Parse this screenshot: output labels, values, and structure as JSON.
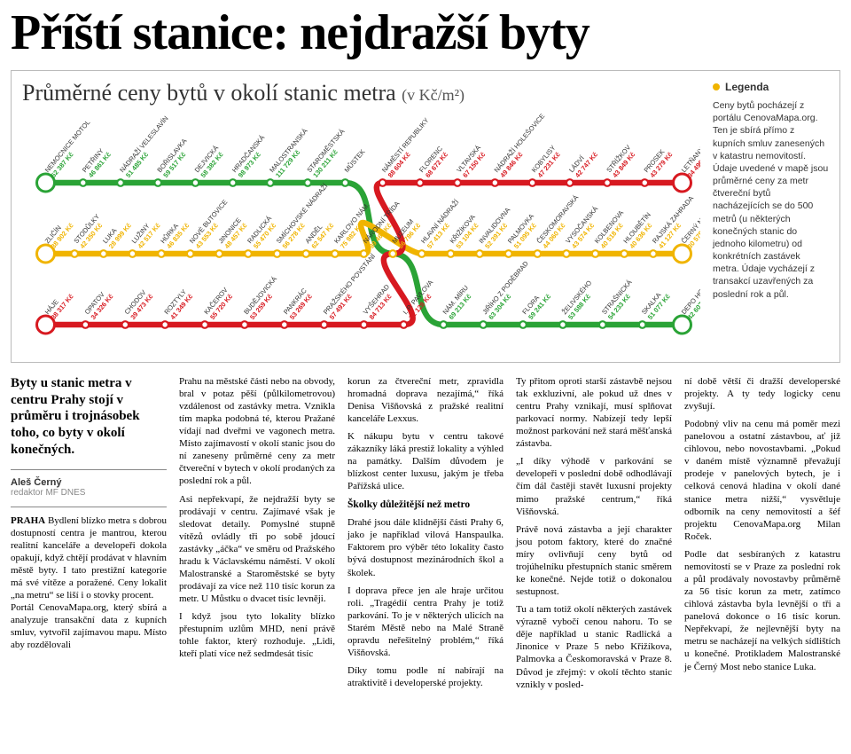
{
  "headline": "Příští stanice: nejdražší byty",
  "map": {
    "title": "Průměrné ceny bytů v okolí stanic metra",
    "unit": "(v Kč/m²)",
    "colors": {
      "A": "#2aa336",
      "B": "#f0b400",
      "C": "#d71920"
    },
    "legend_title": "Legenda",
    "legend_text": "Ceny bytů pocházejí z portálu CenovaMapa.org. Ten je sbírá přímo z kupních smluv zanesených v katastru nemovitostí. Údaje uvedené v mapě jsou průměrné ceny za metr čtvereční bytů nacházejících se do 500 metrů (u některých konečných stanic do jednoho kilometru) od konkrétních zastávek metra. Údaje vycházejí z transakcí uzavřených za poslední rok a půl.",
    "lines": {
      "A_top": [
        {
          "name": "NEMOCNICE MOTOL",
          "price": "52 387 Kč"
        },
        {
          "name": "PETŘINY",
          "price": "46 861 Kč"
        },
        {
          "name": "NÁDRAŽÍ VELESLAVÍN",
          "price": "51 485 Kč"
        },
        {
          "name": "BOŘISLAVKA",
          "price": "59 517 Kč"
        },
        {
          "name": "DEJVICKÁ",
          "price": "58 382 Kč"
        },
        {
          "name": "HRADČANSKÁ",
          "price": "98 973 Kč"
        },
        {
          "name": "MALOSTRANSKÁ",
          "price": "111 729 Kč"
        },
        {
          "name": "STAROMĚSTSKÁ",
          "price": "130 211 Kč"
        },
        {
          "name": "MŮSTEK",
          "price": ""
        },
        {
          "name": "NÁMĚSTÍ REPUBLIKY",
          "price": "88 604 Kč"
        },
        {
          "name": "FLORENC",
          "price": "68 672 Kč"
        },
        {
          "name": "VLTAVSKÁ",
          "price": "67 150 Kč"
        },
        {
          "name": "NÁDRAŽÍ HOLEŠOVICE",
          "price": "49 846 Kč"
        },
        {
          "name": "KOBYLISY",
          "price": "47 231 Kč"
        },
        {
          "name": "LÁDVÍ",
          "price": "42 747 Kč"
        },
        {
          "name": "STŘÍŽKOV",
          "price": "43 849 Kč"
        },
        {
          "name": "PROSEK",
          "price": "43 279 Kč"
        },
        {
          "name": "LETŇANY",
          "price": "34 496 Kč"
        }
      ],
      "B_mid": [
        {
          "name": "ZLIČÍN",
          "price": "38 902 Kč"
        },
        {
          "name": "STODŮLKY",
          "price": "42 350 Kč"
        },
        {
          "name": "LUKA",
          "price": "28 999 Kč"
        },
        {
          "name": "LUŽINY",
          "price": "42 517 Kč"
        },
        {
          "name": "HŮRKA",
          "price": "46 835 Kč"
        },
        {
          "name": "NOVÉ BUTOVICE",
          "price": "43 553 Kč"
        },
        {
          "name": "JINONICE",
          "price": "48 457 Kč"
        },
        {
          "name": "RADLICKÁ",
          "price": "55 470 Kč"
        },
        {
          "name": "SMÍCHOVSKÉ NÁDRAŽÍ",
          "price": "56 278 Kč"
        },
        {
          "name": "ANDĚL",
          "price": "62 547 Kč"
        },
        {
          "name": "KARLOVO NÁM.",
          "price": "75 982 Kč"
        },
        {
          "name": "NÁRODNÍ TŘÍDA",
          "price": "99 466 Kč"
        },
        {
          "name": "MUZEUM",
          "price": "86 786 Kč"
        },
        {
          "name": "HLAVNÍ NÁDRAŽÍ",
          "price": "57 413 Kč"
        },
        {
          "name": "KŘIŽÍKOVA",
          "price": "53 104 Kč"
        },
        {
          "name": "INVALIDOVNA",
          "price": "52 391 Kč"
        },
        {
          "name": "PALMOVKA",
          "price": "51 095 Kč"
        },
        {
          "name": "ČESKOMORAVSKÁ",
          "price": "44 060 Kč"
        },
        {
          "name": "VYSOČANSKÁ",
          "price": "43 574 Kč"
        },
        {
          "name": "KOLBENOVA",
          "price": "40 518 Kč"
        },
        {
          "name": "HLOUBĚTÍN",
          "price": "40 636 Kč"
        },
        {
          "name": "RAJSKÁ ZAHRADA",
          "price": "41 127 Kč"
        },
        {
          "name": "ČERNÝ MOST",
          "price": "30 578 Kč"
        }
      ],
      "C_bot": [
        {
          "name": "HÁJE",
          "price": "38 317 Kč"
        },
        {
          "name": "OPATOV",
          "price": "34 326 Kč"
        },
        {
          "name": "CHODOV",
          "price": "39 473 Kč"
        },
        {
          "name": "ROZTYLY",
          "price": "41 349 Kč"
        },
        {
          "name": "KAČEROV",
          "price": "55 720 Kč"
        },
        {
          "name": "BUDĚJOVICKÁ",
          "price": "53 259 Kč"
        },
        {
          "name": "PANKRÁC",
          "price": "53 269 Kč"
        },
        {
          "name": "PRAŽSKÉHO POVSTÁNÍ",
          "price": "57 491 Kč"
        },
        {
          "name": "VYŠEHRAD",
          "price": "84 713 Kč"
        },
        {
          "name": "I. P. PAVLOVA",
          "price": "72 128 Kč"
        },
        {
          "name": "NÁM. MÍRU",
          "price": "69 213 Kč"
        },
        {
          "name": "JIŘÍHO Z PODĚBRAD",
          "price": "63 304 Kč"
        },
        {
          "name": "FLORA",
          "price": "59 241 Kč"
        },
        {
          "name": "ŽELIVSKÉHO",
          "price": "53 588 Kč"
        },
        {
          "name": "STRAŠNICKÁ",
          "price": "54 233 Kč"
        },
        {
          "name": "SKALKA",
          "price": "51 077 Kč"
        },
        {
          "name": "DEPO HOSTIVAŘ",
          "price": "42 607 Kč"
        }
      ]
    }
  },
  "lead": "Byty u stanic metra v centru Prahy stojí v průměru i trojnásobek toho, co byty v okolí konečných.",
  "byline": {
    "name": "Aleš Černý",
    "role": "redaktor MF DNES"
  },
  "body": {
    "dateline": "PRAHA",
    "p1": "Bydlení blízko metra s dobrou dostupností centra je mantrou, kterou realitní kanceláře a developeři dokola opakují, když chtějí prodávat v hlavním městě byty. I tato prestižní kategorie má své vítěze a poražené. Ceny lokalit „na metru“ se liší i o stovky procent.",
    "p2": "Portál CenovaMapa.org, který sbírá a analyzuje transakční data z kupních smluv, vytvořil zajímavou mapu. Místo aby rozdělovali",
    "p3": "Prahu na městské části nebo na obvody, bral v potaz pěší (půlkilometrovou) vzdálenost od zastávky metra. Vznikla tím mapka podobná té, kterou Pražané vídají nad dveřmi ve vagonech metra. Místo zajímavostí v okolí stanic jsou do ní zaneseny průměrné ceny za metr čtvereční v bytech v okolí prodaných za poslední rok a půl.",
    "p4": "Asi nepřekvapí, že nejdražší byty se prodávají v centru. Zajímavé však je sledovat detaily. Pomyslné stupně vítězů ovládly tři po sobě jdoucí zastávky „áčka“ ve směru od Pražského hradu k Václavskému náměstí. V okolí Malostranské a Staroměstské se byty prodávají za více než 110 tisíc korun za metr. U Můstku o dvacet tisíc levněji.",
    "p5": "I když jsou tyto lokality blízko přestupním uzlům MHD, není právě tohle faktor, který rozhoduje. „Lidi, kteří platí více než sedmdesát tisíc",
    "p6": "korun za čtvereční metr, zpravidla hromadná doprava nezajímá,“ říká Denisa Višňovská z pražské realitní kanceláře Lexxus.",
    "p7": "K nákupu bytu v centru takové zákazníky láká prestiž lokality a výhled na památky. Dalším důvodem je blízkost center luxusu, jakým je třeba Pařížská ulice.",
    "subhead1": "Školky důležitější než metro",
    "p8": "Drahé jsou dále klidnější části Prahy 6, jako je například vilová Hanspaulka. Faktorem pro výběr této lokality často bývá dostupnost mezinárodních škol a školek.",
    "p9": "I doprava přece jen ale hraje určitou roli. „Tragédií centra Prahy je totiž parkování. To je v některých ulicích na Starém Městě nebo na Malé Straně opravdu neřešitelný problém,“ říká Višňovská.",
    "p10": "Díky tomu podle ní nabírají na atraktivitě i developerské projekty.",
    "p11": "Ty přitom oproti starší zástavbě nejsou tak exkluzivní, ale pokud už dnes v centru Prahy vznikají, musí splňovat parkovací normy. Nabízejí tedy lepší možnost parkování než stará měšťanská zástavba.",
    "p12": "„I díky výhodě v parkování se developeři v poslední době odhodlávají čím dál častěji stavět luxusní projekty mimo pražské centrum,“ říká Višňovská.",
    "p13": "Právě nová zástavba a její charakter jsou potom faktory, které do značné míry ovlivňují ceny bytů od trojúhelníku přestupních stanic směrem ke konečné. Nejde totiž o dokonalou sestupnost.",
    "p14": "Tu a tam totiž okolí některých zastávek výrazně vybočí cenou nahoru. To se děje například u stanic Radlická a Jinonice v Praze 5 nebo Křižíkova, Palmovka a Českomoravská v Praze 8. Důvod je zřejmý: v okolí těchto stanic vznikly v posled-",
    "p15": "ní době větší či dražší developerské projekty. A ty tedy logicky cenu zvyšují.",
    "p16": "Podobný vliv na cenu má poměr mezi panelovou a ostatní zástavbou, ať již cihlovou, nebo novostavbami. „Pokud v daném místě významně převažují prodeje v panelových bytech, je i celková cenová hladina v okolí dané stanice metra nižší,“ vysvětluje odborník na ceny nemovitostí a šéf projektu CenovaMapa.org Milan Roček.",
    "p17": "Podle dat sesbíraných z katastru nemovitostí se v Praze za poslední rok a půl prodávaly novostavby průměrně za 56 tisíc korun za metr, zatímco cihlová zástavba byla levnější o tři a panelová dokonce o 16 tisíc korun. Nepřekvapí, že nejlevnější byty na metru se nacházejí na velkých sídlištích u konečné. Protikladem Malostranské je Černý Most nebo stanice Luka."
  }
}
